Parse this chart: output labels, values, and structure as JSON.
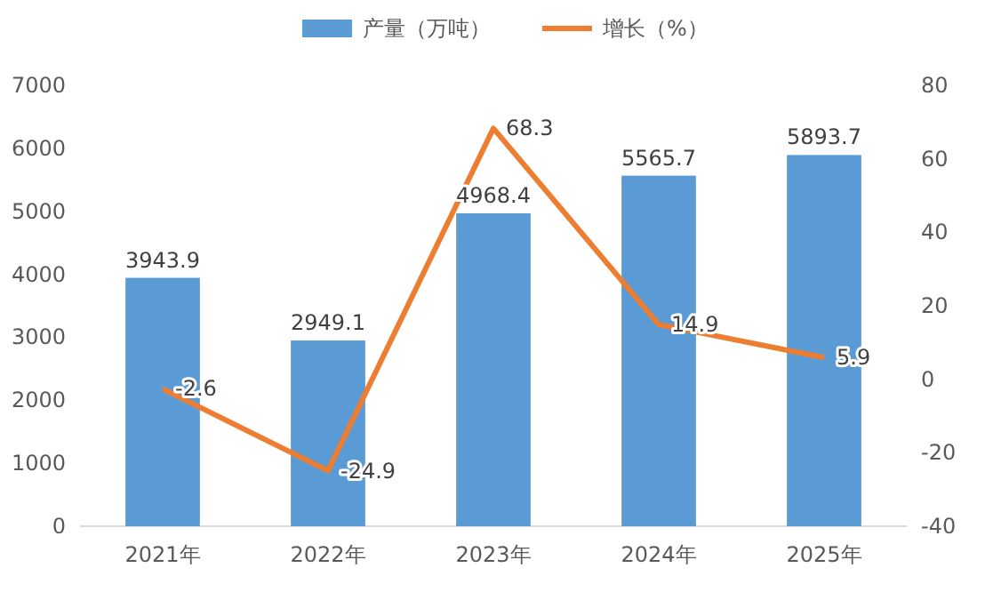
{
  "chart_data": {
    "type": "bar",
    "categories": [
      "2021年",
      "2022年",
      "2023年",
      "2024年",
      "2025年"
    ],
    "series": [
      {
        "name": "产量（万吨）",
        "color": "#5b9bd5",
        "values": [
          3943.9,
          2949.1,
          4968.4,
          5565.7,
          5893.7
        ]
      },
      {
        "name": "增长（%）",
        "type": "line",
        "axis": "y2",
        "color": "#ed7d31",
        "values": [
          -2.6,
          -24.9,
          68.3,
          14.9,
          5.9
        ]
      }
    ],
    "ylim": [
      0,
      7000
    ],
    "yticks": [
      0,
      1000,
      2000,
      3000,
      4000,
      5000,
      6000,
      7000
    ],
    "y2lim": [
      -40,
      80
    ],
    "y2ticks": [
      -40,
      -20,
      0,
      20,
      40,
      60,
      80
    ],
    "data_labels": true,
    "legend": "top",
    "grid": false,
    "marker": "none"
  }
}
